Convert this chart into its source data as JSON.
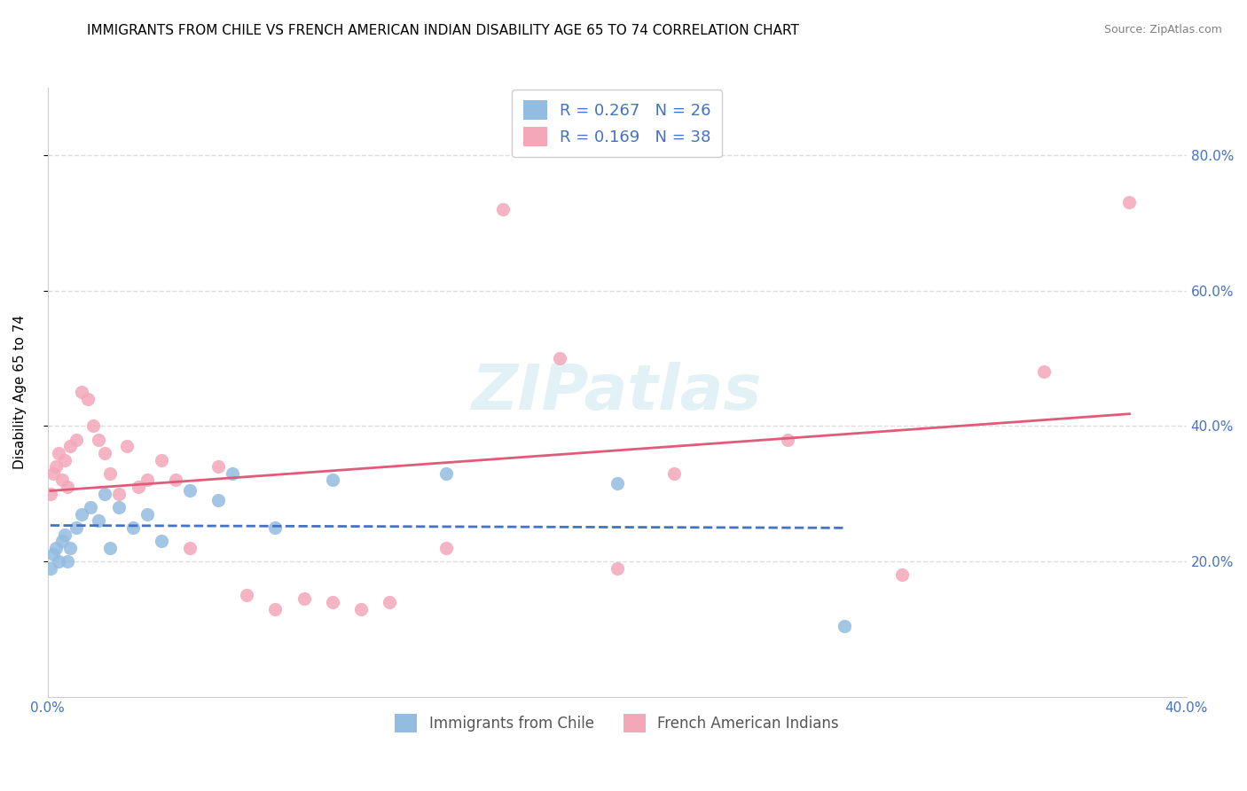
{
  "title": "IMMIGRANTS FROM CHILE VS FRENCH AMERICAN INDIAN DISABILITY AGE 65 TO 74 CORRELATION CHART",
  "source": "Source: ZipAtlas.com",
  "ylabel": "Disability Age 65 to 74",
  "xlim": [
    0.0,
    0.4
  ],
  "ylim": [
    0.0,
    0.9
  ],
  "ytick_positions": [
    0.2,
    0.4,
    0.6,
    0.8
  ],
  "ytick_labels": [
    "20.0%",
    "40.0%",
    "60.0%",
    "80.0%"
  ],
  "xtick_positions": [
    0.0,
    0.05,
    0.1,
    0.15,
    0.2,
    0.25,
    0.3,
    0.35,
    0.4
  ],
  "xtick_labels": [
    "0.0%",
    "",
    "",
    "",
    "",
    "",
    "",
    "",
    "40.0%"
  ],
  "chile_color": "#92bce0",
  "chile_line_color": "#4472c4",
  "french_color": "#f4a7b9",
  "french_line_color": "#e05a7a",
  "R_chile": "0.267",
  "N_chile": "26",
  "R_french": "0.169",
  "N_french": "38",
  "legend_label_chile": "Immigrants from Chile",
  "legend_label_french": "French American Indians",
  "watermark": "ZIPatlas",
  "chile_x": [
    0.001,
    0.002,
    0.003,
    0.004,
    0.005,
    0.006,
    0.007,
    0.008,
    0.01,
    0.012,
    0.015,
    0.018,
    0.02,
    0.022,
    0.025,
    0.03,
    0.035,
    0.04,
    0.05,
    0.06,
    0.065,
    0.08,
    0.1,
    0.14,
    0.2,
    0.28
  ],
  "chile_y": [
    0.19,
    0.21,
    0.22,
    0.2,
    0.23,
    0.24,
    0.2,
    0.22,
    0.25,
    0.27,
    0.28,
    0.26,
    0.3,
    0.22,
    0.28,
    0.25,
    0.27,
    0.23,
    0.305,
    0.29,
    0.33,
    0.25,
    0.32,
    0.33,
    0.315,
    0.105
  ],
  "french_x": [
    0.001,
    0.002,
    0.003,
    0.004,
    0.005,
    0.006,
    0.007,
    0.008,
    0.01,
    0.012,
    0.014,
    0.016,
    0.018,
    0.02,
    0.022,
    0.025,
    0.028,
    0.032,
    0.035,
    0.04,
    0.045,
    0.05,
    0.06,
    0.07,
    0.08,
    0.09,
    0.1,
    0.11,
    0.12,
    0.14,
    0.16,
    0.18,
    0.2,
    0.22,
    0.26,
    0.3,
    0.35,
    0.38
  ],
  "french_y": [
    0.3,
    0.33,
    0.34,
    0.36,
    0.32,
    0.35,
    0.31,
    0.37,
    0.38,
    0.45,
    0.44,
    0.4,
    0.38,
    0.36,
    0.33,
    0.3,
    0.37,
    0.31,
    0.32,
    0.35,
    0.32,
    0.22,
    0.34,
    0.15,
    0.13,
    0.145,
    0.14,
    0.13,
    0.14,
    0.22,
    0.72,
    0.5,
    0.19,
    0.33,
    0.38,
    0.18,
    0.48,
    0.73
  ],
  "background_color": "#ffffff",
  "grid_color": "#dddddd",
  "title_fontsize": 11,
  "axis_label_fontsize": 11,
  "tick_color": "#4472c4"
}
